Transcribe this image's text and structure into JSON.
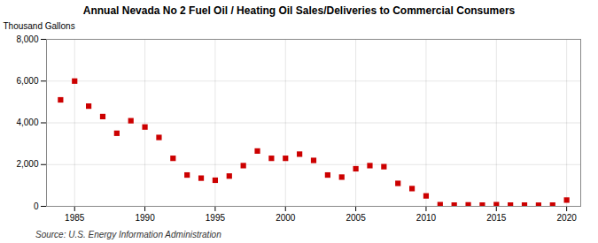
{
  "chart_data": {
    "type": "scatter",
    "title": "Annual Nevada No 2 Fuel Oil / Heating Oil Sales/Deliveries to Commercial Consumers",
    "ylabel": "Thousand Gallons",
    "source": "Source: U.S. Energy Information Administration",
    "color": "#cc0000",
    "marker": "square",
    "grid": true,
    "xlim": [
      1983,
      2021
    ],
    "xticks": [
      1985,
      1990,
      1995,
      2000,
      2005,
      2010,
      2015,
      2020
    ],
    "ylim": [
      0,
      8000
    ],
    "yticks": [
      0,
      {
        "value": 2000,
        "label": "2,000"
      },
      {
        "value": 4000,
        "label": "4,000"
      },
      {
        "value": 6000,
        "label": "6,000"
      },
      {
        "value": 8000,
        "label": "8,000"
      }
    ],
    "x": [
      1984,
      1985,
      1986,
      1987,
      1988,
      1989,
      1990,
      1991,
      1992,
      1993,
      1994,
      1995,
      1996,
      1997,
      1998,
      1999,
      2000,
      2001,
      2002,
      2003,
      2004,
      2005,
      2006,
      2007,
      2008,
      2009,
      2010,
      2011,
      2012,
      2013,
      2014,
      2015,
      2016,
      2017,
      2018,
      2019,
      2020
    ],
    "values": [
      5100,
      6000,
      4800,
      4300,
      3500,
      4100,
      3800,
      3300,
      2300,
      1500,
      1350,
      1250,
      1450,
      1950,
      2650,
      2300,
      2300,
      2500,
      2200,
      1500,
      1400,
      1800,
      1950,
      1900,
      1100,
      850,
      500,
      80,
      60,
      70,
      60,
      80,
      60,
      60,
      55,
      60,
      300
    ]
  }
}
